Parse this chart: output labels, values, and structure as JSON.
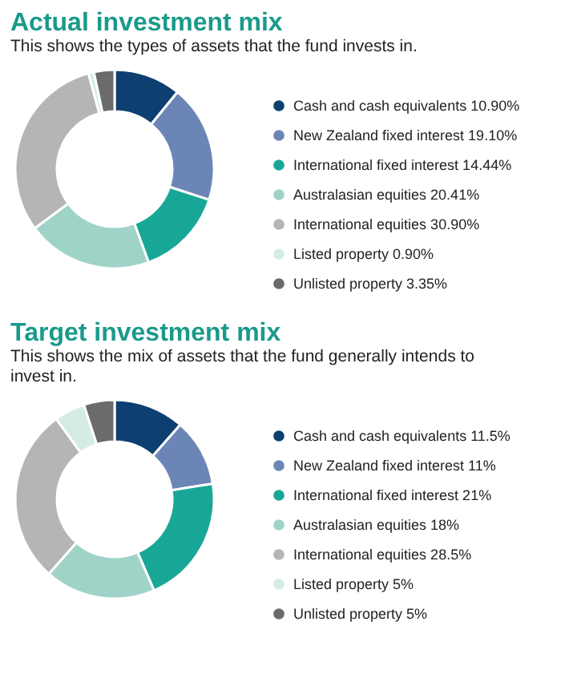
{
  "chart_data": [
    {
      "type": "donut",
      "title": "Actual investment mix",
      "subtitle": "This shows the types of assets that the fund invests in.",
      "categories": [
        "Cash and cash equivalents",
        "New Zealand fixed interest",
        "International fixed interest",
        "Australasian equities",
        "International equities",
        "Listed property",
        "Unlisted property"
      ],
      "values": [
        10.9,
        19.1,
        14.44,
        20.41,
        30.9,
        0.9,
        3.35
      ],
      "value_labels": [
        "10.90%",
        "19.10%",
        "14.44%",
        "20.41%",
        "30.90%",
        "0.90%",
        "3.35%"
      ],
      "colors": [
        "#0d3f70",
        "#6b86b6",
        "#18a797",
        "#9fd3c8",
        "#b5b5b5",
        "#d4ece5",
        "#6b6b6b"
      ],
      "legend": "right"
    },
    {
      "type": "donut",
      "title": "Target investment mix",
      "subtitle": "This shows the mix of assets that the fund generally intends to invest in.",
      "categories": [
        "Cash and cash equivalents",
        "New Zealand fixed interest",
        "International fixed interest",
        "Australasian equities",
        "International equities",
        "Listed property",
        "Unlisted property"
      ],
      "values": [
        11.5,
        11,
        21,
        18,
        28.5,
        5,
        5
      ],
      "value_labels": [
        "11.5%",
        "11%",
        "21%",
        "18%",
        "28.5%",
        "5%",
        "5%"
      ],
      "colors": [
        "#0d3f70",
        "#6b86b6",
        "#18a797",
        "#9fd3c8",
        "#b5b5b5",
        "#d4ece5",
        "#6b6b6b"
      ],
      "legend": "right"
    }
  ]
}
